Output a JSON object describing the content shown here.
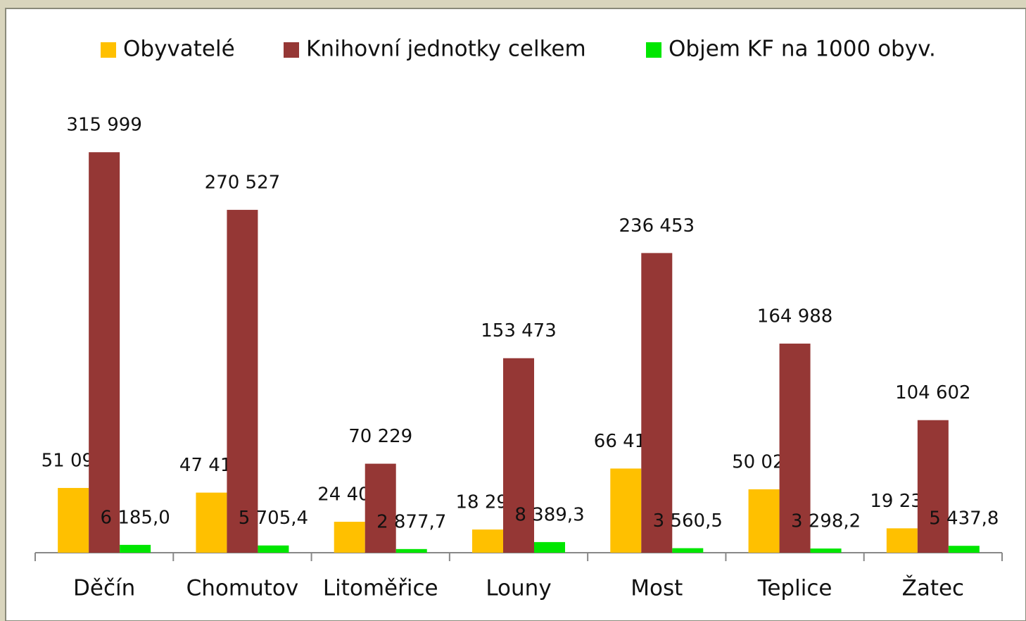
{
  "chart_data": {
    "type": "bar",
    "categories": [
      "Děčín",
      "Chomutov",
      "Litoměřice",
      "Louny",
      "Most",
      "Teplice",
      "Žatec"
    ],
    "series": [
      {
        "name": "Obyvatelé",
        "color": "#ffc000",
        "values": [
          51091,
          47416,
          24405,
          18294,
          66411,
          50024,
          19236
        ],
        "value_labels": [
          "51 091",
          "47 416",
          "24 405",
          "18 294",
          "66 411",
          "50 024",
          "19 236"
        ]
      },
      {
        "name": "Knihovní jednotky celkem",
        "color": "#953735",
        "values": [
          315999,
          270527,
          70229,
          153473,
          236453,
          164988,
          104602
        ],
        "value_labels": [
          "315 999",
          "270 527",
          "70 229",
          "153 473",
          "236 453",
          "164 988",
          "104 602"
        ]
      },
      {
        "name": "Objem KF na 1000 obyv.",
        "color": "#00e600",
        "values": [
          6185.0,
          5705.4,
          2877.7,
          8389.3,
          3560.5,
          3298.2,
          5437.8
        ],
        "value_labels": [
          "6 185,0",
          "5 705,4",
          "2 877,7",
          "8 389,3",
          "3 560,5",
          "3 298,2",
          "5 437,8"
        ]
      }
    ],
    "ylim": [
      0,
      350000
    ],
    "legend": "top"
  }
}
